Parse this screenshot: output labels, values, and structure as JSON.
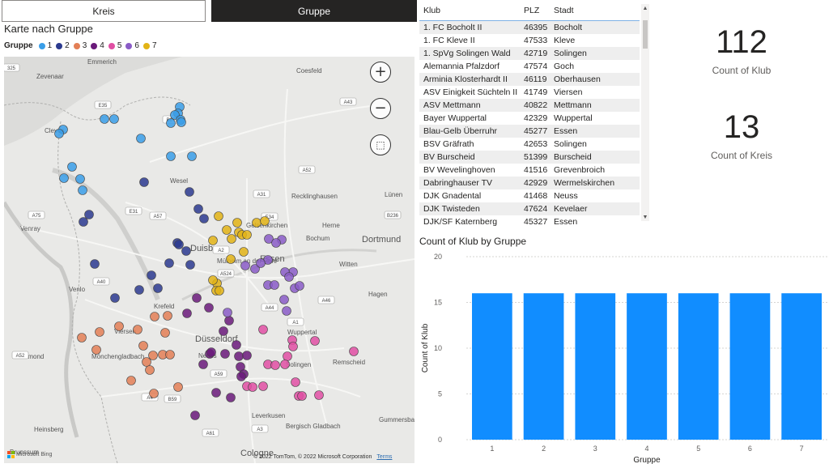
{
  "slicer": {
    "kreis_label": "Kreis",
    "gruppe_label": "Gruppe"
  },
  "map": {
    "title": "Karte nach Gruppe",
    "legend_title": "Gruppe",
    "groups": [
      {
        "label": "1",
        "color": "#3a9ee8"
      },
      {
        "label": "2",
        "color": "#2b3a8f"
      },
      {
        "label": "3",
        "color": "#e37f56"
      },
      {
        "label": "4",
        "color": "#6a1a7a"
      },
      {
        "label": "5",
        "color": "#e04fa3"
      },
      {
        "label": "6",
        "color": "#8a5cc7"
      },
      {
        "label": "7",
        "color": "#e2b315"
      }
    ],
    "cities": [
      "Zevenaar",
      "Emmerich",
      "Coesfeld",
      "Cleves",
      "Wesel",
      "Recklinghausen",
      "Lünen",
      "Herne",
      "Venray",
      "Gelsenkirchen",
      "Dortmund",
      "Duisburg",
      "Essen",
      "Bochum",
      "Witten",
      "Mülheim an der Ruhr",
      "Venlo",
      "Krefeld",
      "Hagen",
      "Düsseldorf",
      "Viersen",
      "Wuppertal",
      "Roermond",
      "Mönchengladbach",
      "Neuss",
      "Remscheid",
      "Solingen",
      "Heinsberg",
      "Leverkusen",
      "Bergisch Gladbach",
      "Gummersbach",
      "Brunssum",
      "Cologne"
    ],
    "roads": [
      "325",
      "E35",
      "B67",
      "A31",
      "A43",
      "E31",
      "A52",
      "A57",
      "A2",
      "A75",
      "B236",
      "E34",
      "A40",
      "A524",
      "A44",
      "A1",
      "A46",
      "A52",
      "A61",
      "A59",
      "B59",
      "A4",
      "A3"
    ],
    "copyright": "© 2022 TomTom, © 2022 Microsoft Corporation",
    "terms": "Terms",
    "brand": "Microsoft Bing"
  },
  "table": {
    "headers": {
      "klub": "Klub",
      "plz": "PLZ",
      "stadt": "Stadt"
    },
    "rows": [
      {
        "klub": "1. FC Bocholt II",
        "plz": "46395",
        "stadt": "Bocholt"
      },
      {
        "klub": "1. FC Kleve II",
        "plz": "47533",
        "stadt": "Kleve"
      },
      {
        "klub": "1. SpVg Solingen Wald",
        "plz": "42719",
        "stadt": "Solingen"
      },
      {
        "klub": "Alemannia Pfalzdorf",
        "plz": "47574",
        "stadt": "Goch"
      },
      {
        "klub": "Arminia Klosterhardt II",
        "plz": "46119",
        "stadt": "Oberhausen"
      },
      {
        "klub": "ASV Einigkeit Süchteln II",
        "plz": "41749",
        "stadt": "Viersen"
      },
      {
        "klub": "ASV Mettmann",
        "plz": "40822",
        "stadt": "Mettmann"
      },
      {
        "klub": "Bayer Wuppertal",
        "plz": "42329",
        "stadt": "Wuppertal"
      },
      {
        "klub": "Blau-Gelb Überruhr",
        "plz": "45277",
        "stadt": "Essen"
      },
      {
        "klub": "BSV Gräfrath",
        "plz": "42653",
        "stadt": "Solingen"
      },
      {
        "klub": "BV Burscheid",
        "plz": "51399",
        "stadt": "Burscheid"
      },
      {
        "klub": "BV Wevelinghoven",
        "plz": "41516",
        "stadt": "Grevenbroich"
      },
      {
        "klub": "Dabringhauser TV",
        "plz": "42929",
        "stadt": "Wermelskirchen"
      },
      {
        "klub": "DJK Gnadental",
        "plz": "41468",
        "stadt": "Neuss"
      },
      {
        "klub": "DJK Twisteden",
        "plz": "47624",
        "stadt": "Kevelaer"
      },
      {
        "klub": "DJK/SF Katernberg",
        "plz": "45327",
        "stadt": "Essen"
      }
    ],
    "scroll_up": "▲",
    "scroll_down": "▼"
  },
  "cards": {
    "klub": {
      "value": "112",
      "label": "Count of Klub"
    },
    "kreis": {
      "value": "13",
      "label": "Count of Kreis"
    }
  },
  "chart_data": {
    "type": "bar",
    "title": "Count of Klub by Gruppe",
    "xlabel": "Gruppe",
    "ylabel": "Count of Klub",
    "categories": [
      "1",
      "2",
      "3",
      "4",
      "5",
      "6",
      "7"
    ],
    "values": [
      16,
      16,
      16,
      16,
      16,
      16,
      16
    ],
    "ylim": [
      0,
      20
    ],
    "yticks": [
      0,
      5,
      10,
      15,
      20
    ],
    "color": "#118dff",
    "grid": true
  }
}
